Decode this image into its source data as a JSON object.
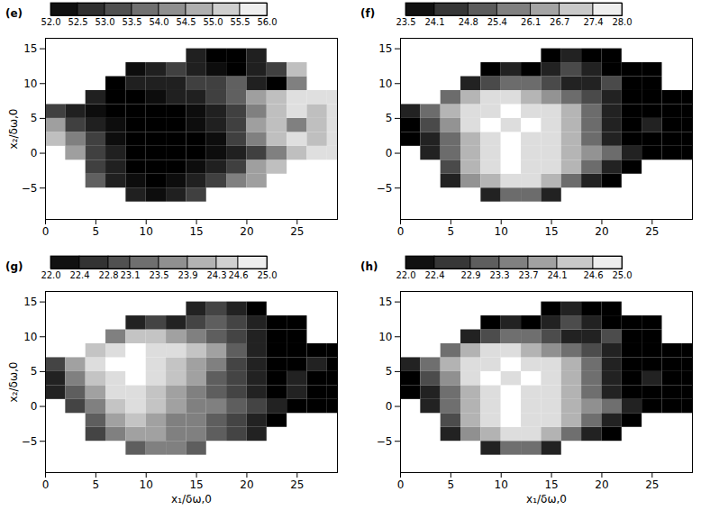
{
  "chart_data": [
    {
      "type": "heatmap",
      "panel": "(e)",
      "y_label": "x₂/δω,0",
      "xlim": [
        0,
        29
      ],
      "xticks": [
        0,
        5,
        10,
        15,
        20,
        25
      ],
      "ylim": [
        -9.5,
        16.5
      ],
      "yticks": [
        -5,
        0,
        5,
        10,
        15
      ],
      "x": [
        0,
        2,
        4,
        6,
        8,
        10,
        12,
        14,
        16,
        18,
        20,
        22,
        24,
        26,
        28,
        30
      ],
      "y": [
        -9,
        -7,
        -5,
        -3,
        -1,
        1,
        3,
        5,
        7,
        9,
        11,
        13,
        15,
        17
      ],
      "z": [
        [
          null,
          null,
          null,
          null,
          null,
          null,
          null,
          null,
          null,
          null,
          null,
          null,
          null,
          null,
          null
        ],
        [
          null,
          null,
          null,
          null,
          52.5,
          52.2,
          52.5,
          53.0,
          null,
          null,
          null,
          null,
          null,
          null,
          null
        ],
        [
          null,
          null,
          53.5,
          52.5,
          52.2,
          52.0,
          52.2,
          52.5,
          53.0,
          54.0,
          54.5,
          null,
          null,
          null,
          null
        ],
        [
          null,
          null,
          53.0,
          52.5,
          52.0,
          52.0,
          52.0,
          52.2,
          52.5,
          53.0,
          54.5,
          55.0,
          null,
          null,
          null
        ],
        [
          null,
          54.5,
          53.0,
          52.5,
          52.0,
          52.0,
          52.0,
          52.0,
          52.2,
          52.5,
          53.0,
          54.0,
          55.0,
          55.5,
          55.5
        ],
        [
          55.0,
          54.0,
          53.0,
          52.2,
          52.0,
          52.0,
          52.0,
          52.0,
          52.2,
          53.0,
          54.0,
          55.0,
          55.5,
          55.0,
          55.5
        ],
        [
          54.5,
          53.0,
          52.5,
          52.2,
          52.0,
          52.0,
          52.0,
          52.2,
          52.5,
          53.0,
          54.5,
          55.0,
          54.0,
          55.0,
          55.5
        ],
        [
          53.0,
          52.5,
          52.2,
          52.0,
          52.0,
          52.0,
          52.0,
          52.2,
          52.5,
          53.0,
          54.0,
          55.0,
          55.5,
          55.0,
          55.5
        ],
        [
          null,
          null,
          52.5,
          52.0,
          52.0,
          52.2,
          52.5,
          52.5,
          53.0,
          53.5,
          54.5,
          55.0,
          55.5,
          55.5,
          55.5
        ],
        [
          null,
          null,
          null,
          52.0,
          52.5,
          52.5,
          52.5,
          53.0,
          53.0,
          53.5,
          52.5,
          52.0,
          54.0,
          null,
          null
        ],
        [
          null,
          null,
          null,
          null,
          52.2,
          52.5,
          53.0,
          52.5,
          52.2,
          52.0,
          52.5,
          53.0,
          55.0,
          null,
          null
        ],
        [
          null,
          null,
          null,
          null,
          null,
          null,
          null,
          52.5,
          52.0,
          52.0,
          52.5,
          null,
          null,
          null,
          null
        ],
        [
          null,
          null,
          null,
          null,
          null,
          null,
          null,
          null,
          null,
          null,
          null,
          null,
          null,
          null,
          null
        ]
      ],
      "colorbar": {
        "range": [
          52,
          56
        ],
        "ticks": [
          {
            "value": 52,
            "label": "52.0"
          },
          {
            "value": 52.5,
            "label": "52.5"
          },
          {
            "value": 53,
            "label": "53.0"
          },
          {
            "value": 53.5,
            "label": "53.5"
          },
          {
            "value": 54,
            "label": "54.0"
          },
          {
            "value": 54.5,
            "label": "54.5"
          },
          {
            "value": 55,
            "label": "55.0"
          },
          {
            "value": 55.5,
            "label": "55.5"
          },
          {
            "value": 56,
            "label": "56.0"
          }
        ]
      }
    },
    {
      "type": "heatmap",
      "panel": "(f)",
      "xlim": [
        0,
        29
      ],
      "xticks": [
        0,
        5,
        10,
        15,
        20,
        25
      ],
      "ylim": [
        -9.5,
        16.5
      ],
      "yticks": [
        -5,
        0,
        5,
        10,
        15
      ],
      "x": [
        0,
        2,
        4,
        6,
        8,
        10,
        12,
        14,
        16,
        18,
        20,
        22,
        24,
        26,
        28,
        30
      ],
      "y": [
        -9,
        -7,
        -5,
        -3,
        -1,
        1,
        3,
        5,
        7,
        9,
        11,
        13,
        15,
        17
      ],
      "z": [
        [
          null,
          null,
          null,
          null,
          null,
          null,
          null,
          null,
          null,
          null,
          null,
          null,
          null,
          null,
          null
        ],
        [
          null,
          null,
          null,
          null,
          24.1,
          25.4,
          25.4,
          24.1,
          null,
          null,
          null,
          null,
          null,
          null,
          null
        ],
        [
          null,
          null,
          24.1,
          26.1,
          26.7,
          27.4,
          27.4,
          26.7,
          25.4,
          24.1,
          23.5,
          null,
          null,
          null,
          null
        ],
        [
          null,
          null,
          24.8,
          26.7,
          27.4,
          28.0,
          27.4,
          27.4,
          26.7,
          25.4,
          24.1,
          23.5,
          null,
          null,
          null
        ],
        [
          null,
          24.1,
          25.4,
          26.7,
          27.4,
          28.0,
          27.4,
          27.4,
          26.7,
          26.1,
          25.4,
          24.1,
          23.5,
          23.5,
          23.5
        ],
        [
          23.5,
          24.1,
          25.4,
          26.7,
          27.4,
          28.0,
          27.4,
          27.4,
          26.7,
          25.4,
          24.1,
          23.5,
          23.5,
          23.5,
          23.5
        ],
        [
          23.5,
          24.8,
          26.1,
          27.4,
          28.0,
          27.4,
          28.0,
          27.4,
          26.7,
          25.4,
          24.1,
          23.5,
          24.1,
          23.5,
          23.5
        ],
        [
          24.1,
          25.4,
          26.7,
          27.4,
          27.4,
          28.0,
          27.4,
          27.4,
          26.7,
          25.4,
          24.1,
          23.5,
          23.5,
          23.5,
          23.5
        ],
        [
          null,
          null,
          25.4,
          26.7,
          27.4,
          27.4,
          26.7,
          26.1,
          25.4,
          24.8,
          24.1,
          23.5,
          23.5,
          23.5,
          23.5
        ],
        [
          null,
          null,
          null,
          24.1,
          24.8,
          25.4,
          25.4,
          24.8,
          24.1,
          24.1,
          24.8,
          23.5,
          23.5,
          null,
          null
        ],
        [
          null,
          null,
          null,
          null,
          23.5,
          24.1,
          23.5,
          24.1,
          24.8,
          24.1,
          23.5,
          23.5,
          23.5,
          null,
          null
        ],
        [
          null,
          null,
          null,
          null,
          null,
          null,
          null,
          23.5,
          24.1,
          23.5,
          23.5,
          null,
          null,
          null,
          null
        ],
        [
          null,
          null,
          null,
          null,
          null,
          null,
          null,
          null,
          null,
          null,
          null,
          null,
          null,
          null,
          null
        ]
      ],
      "colorbar": {
        "range": [
          23.5,
          28
        ],
        "ticks": [
          23.5,
          24.1,
          24.8,
          25.4,
          26.1,
          26.7,
          27.4,
          {
            "value": 28,
            "label": "28.0"
          }
        ]
      }
    },
    {
      "type": "heatmap",
      "panel": "(g)",
      "x_label": "x₁/δω,0",
      "y_label": "x₂/δω,0",
      "xlim": [
        0,
        29
      ],
      "xticks": [
        0,
        5,
        10,
        15,
        20,
        25
      ],
      "ylim": [
        -9.5,
        16.5
      ],
      "yticks": [
        -5,
        0,
        5,
        10,
        15
      ],
      "x": [
        0,
        2,
        4,
        6,
        8,
        10,
        12,
        14,
        16,
        18,
        20,
        22,
        24,
        26,
        28,
        30
      ],
      "y": [
        -9,
        -7,
        -5,
        -3,
        -1,
        1,
        3,
        5,
        7,
        9,
        11,
        13,
        15,
        17
      ],
      "z": [
        [
          null,
          null,
          null,
          null,
          null,
          null,
          null,
          null,
          null,
          null,
          null,
          null,
          null,
          null,
          null
        ],
        [
          null,
          null,
          null,
          null,
          23.1,
          23.5,
          23.5,
          23.1,
          null,
          null,
          null,
          null,
          null,
          null,
          null
        ],
        [
          null,
          null,
          22.8,
          23.5,
          23.9,
          23.9,
          23.5,
          23.5,
          23.1,
          22.8,
          22.4,
          null,
          null,
          null,
          null
        ],
        [
          null,
          null,
          23.1,
          23.9,
          24.3,
          23.9,
          23.5,
          23.5,
          23.1,
          22.8,
          22.4,
          22.0,
          null,
          null,
          null
        ],
        [
          null,
          22.8,
          23.5,
          24.3,
          24.6,
          24.3,
          23.9,
          23.5,
          23.5,
          23.1,
          22.8,
          22.4,
          22.0,
          22.0,
          22.0
        ],
        [
          22.4,
          23.1,
          23.9,
          24.6,
          24.6,
          24.3,
          23.9,
          23.5,
          23.1,
          22.8,
          22.4,
          22.0,
          22.4,
          22.0,
          22.0
        ],
        [
          22.4,
          23.5,
          24.3,
          24.6,
          25.0,
          24.6,
          24.3,
          23.9,
          23.1,
          22.8,
          22.4,
          22.0,
          22.4,
          22.0,
          22.0
        ],
        [
          22.8,
          23.9,
          24.6,
          25.0,
          25.0,
          24.6,
          24.3,
          23.9,
          23.5,
          22.8,
          22.4,
          22.0,
          22.0,
          22.4,
          22.0
        ],
        [
          null,
          null,
          24.3,
          24.6,
          25.0,
          24.6,
          24.6,
          24.3,
          23.9,
          23.1,
          22.4,
          22.0,
          22.0,
          22.0,
          22.0
        ],
        [
          null,
          null,
          null,
          23.5,
          24.3,
          24.3,
          23.9,
          23.5,
          23.1,
          22.8,
          22.4,
          22.0,
          22.0,
          null,
          null
        ],
        [
          null,
          null,
          null,
          null,
          22.4,
          22.8,
          22.4,
          22.8,
          23.1,
          22.8,
          22.4,
          22.0,
          22.0,
          null,
          null
        ],
        [
          null,
          null,
          null,
          null,
          null,
          null,
          null,
          22.4,
          22.8,
          22.4,
          22.0,
          null,
          null,
          null,
          null
        ],
        [
          null,
          null,
          null,
          null,
          null,
          null,
          null,
          null,
          null,
          null,
          null,
          null,
          null,
          null,
          null
        ]
      ],
      "colorbar": {
        "range": [
          22,
          25
        ],
        "ticks": [
          {
            "value": 22,
            "label": "22.0"
          },
          22.4,
          22.8,
          23.1,
          23.5,
          23.9,
          24.3,
          24.6,
          {
            "value": 25,
            "label": "25.0"
          }
        ]
      }
    },
    {
      "type": "heatmap",
      "panel": "(h)",
      "x_label": "x₁/δω,0",
      "xlim": [
        0,
        29
      ],
      "xticks": [
        0,
        5,
        10,
        15,
        20,
        25
      ],
      "ylim": [
        -9.5,
        16.5
      ],
      "yticks": [
        -5,
        0,
        5,
        10,
        15
      ],
      "x": [
        0,
        2,
        4,
        6,
        8,
        10,
        12,
        14,
        16,
        18,
        20,
        22,
        24,
        26,
        28,
        30
      ],
      "y": [
        -9,
        -7,
        -5,
        -3,
        -1,
        1,
        3,
        5,
        7,
        9,
        11,
        13,
        15,
        17
      ],
      "z": [
        [
          null,
          null,
          null,
          null,
          null,
          null,
          null,
          null,
          null,
          null,
          null,
          null,
          null,
          null,
          null
        ],
        [
          null,
          null,
          null,
          null,
          22.4,
          23.3,
          23.3,
          22.4,
          null,
          null,
          null,
          null,
          null,
          null,
          null
        ],
        [
          null,
          null,
          22.4,
          23.7,
          24.1,
          24.6,
          24.6,
          24.1,
          23.3,
          22.4,
          22.0,
          null,
          null,
          null,
          null
        ],
        [
          null,
          null,
          22.9,
          24.1,
          24.6,
          25.0,
          24.6,
          24.6,
          24.1,
          23.3,
          22.4,
          22.0,
          null,
          null,
          null
        ],
        [
          null,
          22.4,
          23.3,
          24.1,
          24.6,
          25.0,
          24.6,
          24.6,
          24.1,
          23.7,
          23.3,
          22.4,
          22.0,
          22.0,
          22.0
        ],
        [
          22.0,
          22.4,
          23.3,
          24.1,
          24.6,
          25.0,
          24.6,
          24.6,
          24.1,
          23.3,
          22.4,
          22.0,
          22.0,
          22.0,
          22.0
        ],
        [
          22.0,
          22.9,
          23.7,
          24.6,
          25.0,
          24.6,
          25.0,
          24.6,
          24.1,
          23.3,
          22.4,
          22.0,
          22.4,
          22.0,
          22.0
        ],
        [
          22.4,
          23.3,
          24.1,
          24.6,
          24.6,
          25.0,
          24.6,
          24.6,
          24.1,
          23.3,
          22.4,
          22.0,
          22.0,
          22.0,
          22.0
        ],
        [
          null,
          null,
          23.3,
          24.1,
          24.6,
          24.6,
          24.1,
          23.7,
          23.3,
          22.9,
          22.4,
          22.0,
          22.0,
          22.0,
          22.0
        ],
        [
          null,
          null,
          null,
          22.4,
          22.9,
          23.3,
          23.3,
          22.9,
          22.4,
          22.4,
          22.9,
          22.0,
          22.0,
          null,
          null
        ],
        [
          null,
          null,
          null,
          null,
          22.0,
          22.4,
          22.0,
          22.4,
          22.9,
          22.4,
          22.0,
          22.0,
          22.0,
          null,
          null
        ],
        [
          null,
          null,
          null,
          null,
          null,
          null,
          null,
          22.0,
          22.4,
          22.0,
          22.0,
          null,
          null,
          null,
          null
        ],
        [
          null,
          null,
          null,
          null,
          null,
          null,
          null,
          null,
          null,
          null,
          null,
          null,
          null,
          null,
          null
        ]
      ],
      "colorbar": {
        "range": [
          22,
          25
        ],
        "ticks": [
          {
            "value": 22,
            "label": "22.0"
          },
          22.4,
          22.9,
          23.3,
          23.7,
          24.1,
          24.6,
          {
            "value": 25,
            "label": "25.0"
          }
        ]
      }
    }
  ]
}
